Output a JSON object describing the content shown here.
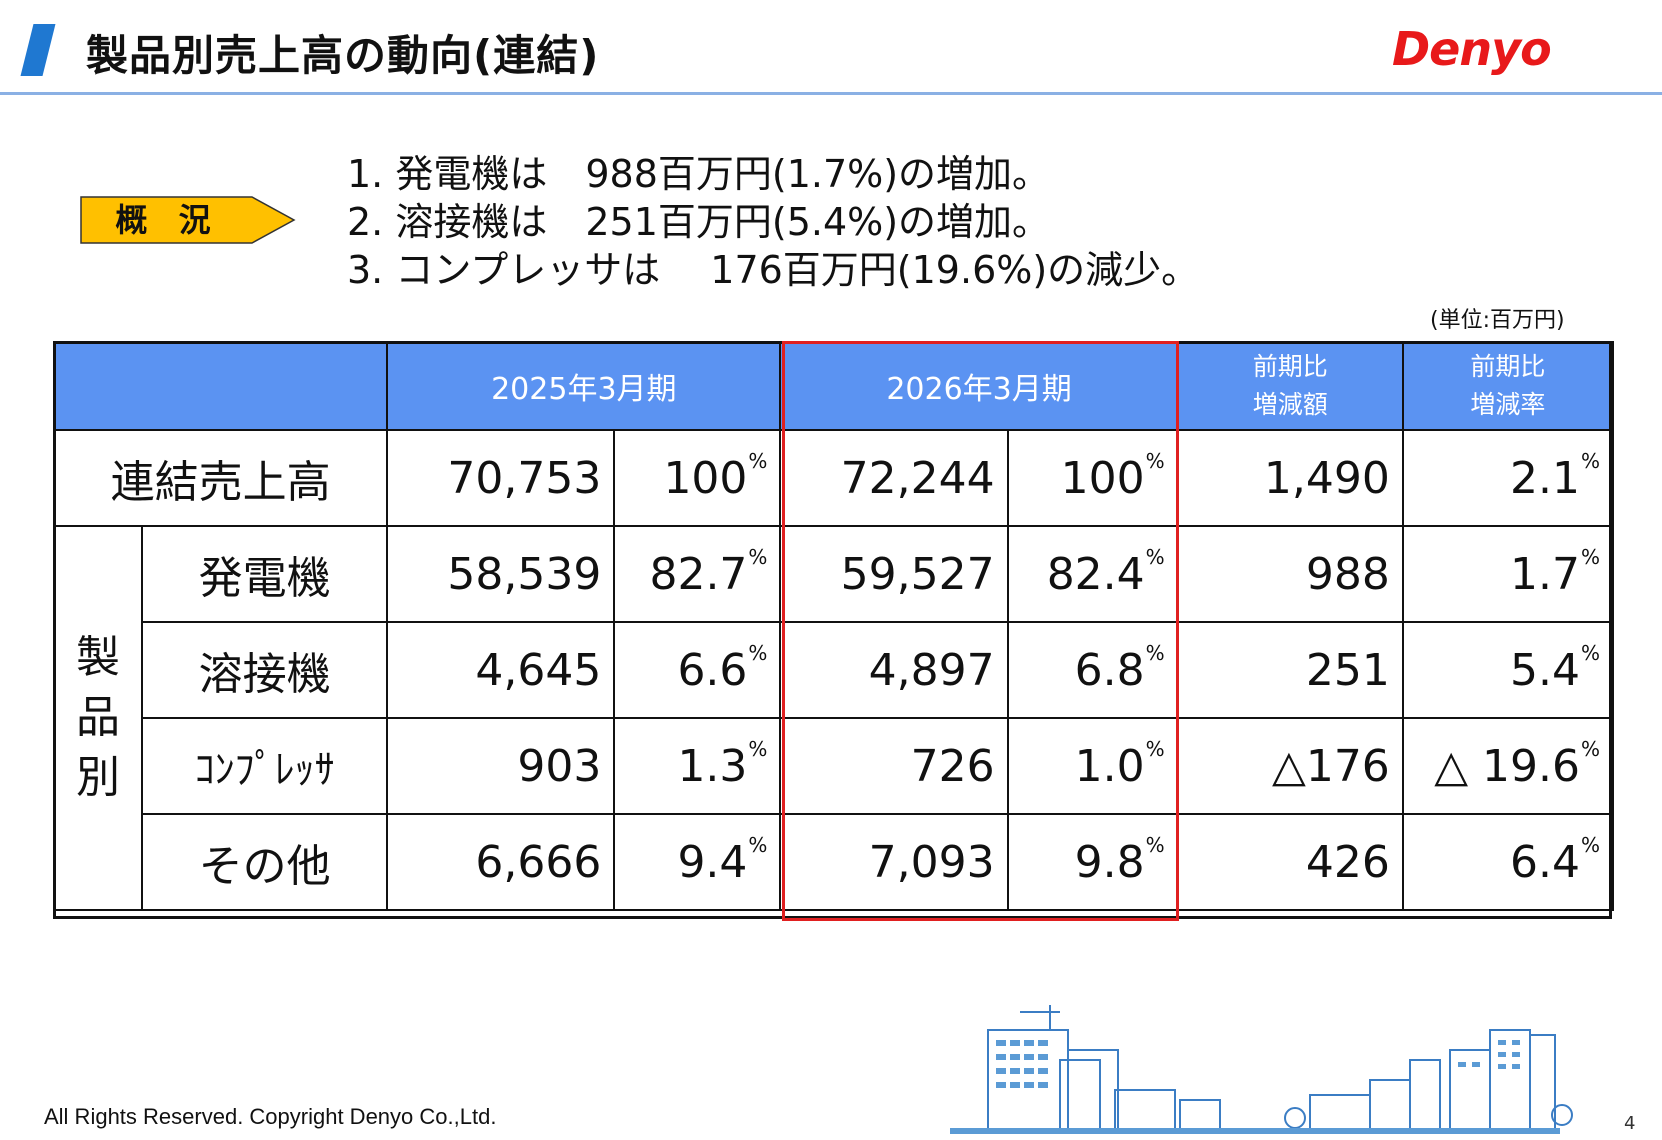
{
  "header": {
    "title": "製品別売上高の動向(連結)",
    "logo": "Denyo",
    "accent_color": "#1f78d1",
    "logo_color": "#e8191a"
  },
  "summary": {
    "badge_label": "概 況",
    "badge_color": "#ffc000",
    "lines": [
      "1. 発電機は　988百万円(1.7%)の増加。",
      "2. 溶接機は　251百万円(5.4%)の増加。",
      "3. コンプレッサは　 176百万円(19.6%)の減少。"
    ]
  },
  "unit_note": "(単位:百万円)",
  "table": {
    "header_color": "#5b93f2",
    "highlight_color": "#e02020",
    "columns": {
      "fy2025": "2025年3月期",
      "fy2026": "2026年3月期",
      "diff_amount_line1": "前期比",
      "diff_amount_line2": "増減額",
      "diff_rate_line1": "前期比",
      "diff_rate_line2": "増減率"
    },
    "group_label": [
      "製",
      "品",
      "別"
    ],
    "pct_symbol": "%",
    "rows": [
      {
        "label": "連結売上高",
        "v2025": "70,753",
        "p2025": "100",
        "v2026": "72,244",
        "p2026": "100",
        "diff": "1,490",
        "rate": "2.1"
      },
      {
        "label": "発電機",
        "v2025": "58,539",
        "p2025": "82.7",
        "v2026": "59,527",
        "p2026": "82.4",
        "diff": "988",
        "rate": "1.7"
      },
      {
        "label": "溶接機",
        "v2025": "4,645",
        "p2025": "6.6",
        "v2026": "4,897",
        "p2026": "6.8",
        "diff": "251",
        "rate": "5.4"
      },
      {
        "label": "ｺﾝﾌﾟﾚｯｻ",
        "v2025": "903",
        "p2025": "1.3",
        "v2026": "726",
        "p2026": "1.0",
        "diff": "△176",
        "rate": "△ 19.6"
      },
      {
        "label": "その他",
        "v2025": "6,666",
        "p2025": "9.4",
        "v2026": "7,093",
        "p2026": "9.8",
        "diff": "426",
        "rate": "6.4"
      }
    ]
  },
  "footer": {
    "copyright": "All Rights Reserved. Copyright Denyo Co.,Ltd.",
    "page": "4"
  }
}
